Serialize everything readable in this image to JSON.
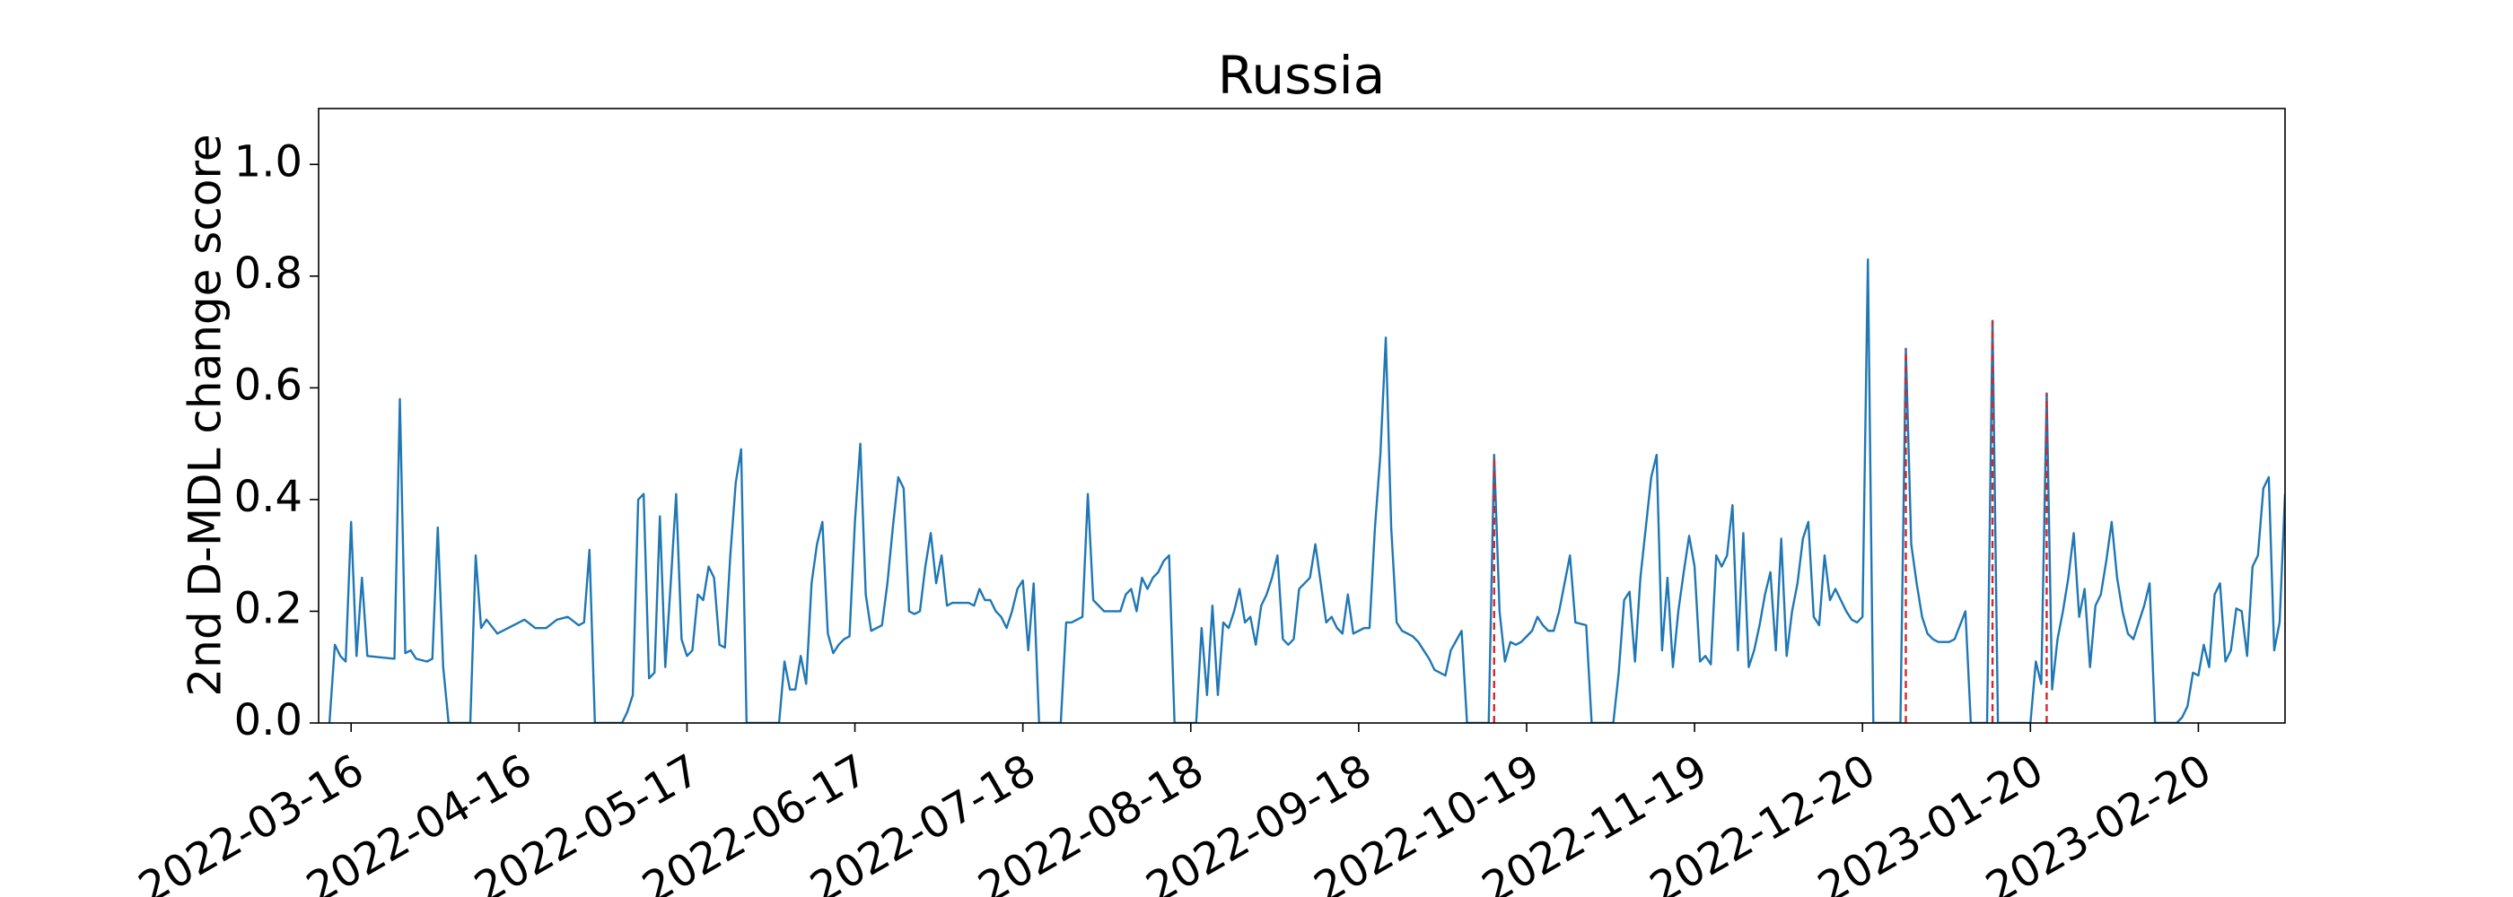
{
  "chart_data": {
    "type": "line",
    "title": "Russia",
    "ylabel": "2nd D-MDL change score",
    "color": "#1f77b4",
    "x": [
      "2022-03-12",
      "2022-03-13",
      "2022-03-14",
      "2022-03-15",
      "2022-03-16",
      "2022-03-17",
      "2022-03-18",
      "2022-03-19",
      "2022-03-24",
      "2022-03-25",
      "2022-03-26",
      "2022-03-27",
      "2022-03-28",
      "2022-03-30",
      "2022-03-31",
      "2022-04-01",
      "2022-04-02",
      "2022-04-03",
      "2022-04-07",
      "2022-04-08",
      "2022-04-09",
      "2022-04-10",
      "2022-04-12",
      "2022-04-17",
      "2022-04-19",
      "2022-04-21",
      "2022-04-23",
      "2022-04-25",
      "2022-04-27",
      "2022-04-28",
      "2022-04-29",
      "2022-04-30",
      "2022-05-05",
      "2022-05-06",
      "2022-05-07",
      "2022-05-08",
      "2022-05-09",
      "2022-05-10",
      "2022-05-11",
      "2022-05-12",
      "2022-05-13",
      "2022-05-14",
      "2022-05-15",
      "2022-05-16",
      "2022-05-17",
      "2022-05-18",
      "2022-05-19",
      "2022-05-20",
      "2022-05-21",
      "2022-05-22",
      "2022-05-23",
      "2022-05-24",
      "2022-05-25",
      "2022-05-26",
      "2022-05-27",
      "2022-05-28",
      "2022-06-03",
      "2022-06-04",
      "2022-06-05",
      "2022-06-06",
      "2022-06-07",
      "2022-06-08",
      "2022-06-09",
      "2022-06-10",
      "2022-06-11",
      "2022-06-12",
      "2022-06-13",
      "2022-06-14",
      "2022-06-15",
      "2022-06-16",
      "2022-06-17",
      "2022-06-18",
      "2022-06-19",
      "2022-06-20",
      "2022-06-21",
      "2022-06-22",
      "2022-06-23",
      "2022-06-24",
      "2022-06-25",
      "2022-06-26",
      "2022-06-27",
      "2022-06-28",
      "2022-06-29",
      "2022-06-30",
      "2022-07-01",
      "2022-07-02",
      "2022-07-03",
      "2022-07-04",
      "2022-07-05",
      "2022-07-08",
      "2022-07-09",
      "2022-07-10",
      "2022-07-11",
      "2022-07-12",
      "2022-07-13",
      "2022-07-14",
      "2022-07-15",
      "2022-07-16",
      "2022-07-17",
      "2022-07-18",
      "2022-07-19",
      "2022-07-20",
      "2022-07-21",
      "2022-07-25",
      "2022-07-26",
      "2022-07-27",
      "2022-07-28",
      "2022-07-29",
      "2022-07-30",
      "2022-07-31",
      "2022-08-01",
      "2022-08-02",
      "2022-08-05",
      "2022-08-06",
      "2022-08-07",
      "2022-08-08",
      "2022-08-09",
      "2022-08-10",
      "2022-08-11",
      "2022-08-12",
      "2022-08-13",
      "2022-08-14",
      "2022-08-15",
      "2022-08-19",
      "2022-08-20",
      "2022-08-21",
      "2022-08-22",
      "2022-08-23",
      "2022-08-24",
      "2022-08-25",
      "2022-08-26",
      "2022-08-27",
      "2022-08-28",
      "2022-08-29",
      "2022-08-30",
      "2022-08-31",
      "2022-09-01",
      "2022-09-02",
      "2022-09-03",
      "2022-09-04",
      "2022-09-05",
      "2022-09-06",
      "2022-09-07",
      "2022-09-08",
      "2022-09-09",
      "2022-09-10",
      "2022-09-11",
      "2022-09-12",
      "2022-09-13",
      "2022-09-14",
      "2022-09-15",
      "2022-09-16",
      "2022-09-17",
      "2022-09-18",
      "2022-09-19",
      "2022-09-20",
      "2022-09-21",
      "2022-09-22",
      "2022-09-23",
      "2022-09-24",
      "2022-09-25",
      "2022-09-26",
      "2022-09-27",
      "2022-09-28",
      "2022-09-29",
      "2022-09-30",
      "2022-10-01",
      "2022-10-02",
      "2022-10-04",
      "2022-10-05",
      "2022-10-07",
      "2022-10-08",
      "2022-10-12",
      "2022-10-13",
      "2022-10-14",
      "2022-10-15",
      "2022-10-16",
      "2022-10-17",
      "2022-10-18",
      "2022-10-19",
      "2022-10-20",
      "2022-10-21",
      "2022-10-22",
      "2022-10-23",
      "2022-10-24",
      "2022-10-25",
      "2022-10-27",
      "2022-10-28",
      "2022-10-30",
      "2022-10-31",
      "2022-11-04",
      "2022-11-05",
      "2022-11-06",
      "2022-11-07",
      "2022-11-08",
      "2022-11-09",
      "2022-11-10",
      "2022-11-11",
      "2022-11-12",
      "2022-11-13",
      "2022-11-14",
      "2022-11-15",
      "2022-11-16",
      "2022-11-17",
      "2022-11-18",
      "2022-11-19",
      "2022-11-20",
      "2022-11-21",
      "2022-11-22",
      "2022-11-23",
      "2022-11-24",
      "2022-11-25",
      "2022-11-26",
      "2022-11-27",
      "2022-11-28",
      "2022-11-29",
      "2022-11-30",
      "2022-12-01",
      "2022-12-02",
      "2022-12-03",
      "2022-12-04",
      "2022-12-05",
      "2022-12-06",
      "2022-12-07",
      "2022-12-08",
      "2022-12-09",
      "2022-12-10",
      "2022-12-11",
      "2022-12-12",
      "2022-12-13",
      "2022-12-14",
      "2022-12-15",
      "2022-12-16",
      "2022-12-17",
      "2022-12-18",
      "2022-12-19",
      "2022-12-20",
      "2022-12-21",
      "2022-12-22",
      "2022-12-27",
      "2022-12-28",
      "2022-12-29",
      "2022-12-30",
      "2022-12-31",
      "2023-01-01",
      "2023-01-02",
      "2023-01-03",
      "2023-01-05",
      "2023-01-06",
      "2023-01-07",
      "2023-01-08",
      "2023-01-09",
      "2023-01-12",
      "2023-01-13",
      "2023-01-14",
      "2023-01-20",
      "2023-01-21",
      "2023-01-22",
      "2023-01-23",
      "2023-01-24",
      "2023-01-25",
      "2023-01-26",
      "2023-01-27",
      "2023-01-28",
      "2023-01-29",
      "2023-01-30",
      "2023-01-31",
      "2023-02-01",
      "2023-02-02",
      "2023-02-03",
      "2023-02-04",
      "2023-02-05",
      "2023-02-06",
      "2023-02-07",
      "2023-02-08",
      "2023-02-09",
      "2023-02-10",
      "2023-02-11",
      "2023-02-12",
      "2023-02-16",
      "2023-02-17",
      "2023-02-18",
      "2023-02-19",
      "2023-02-20",
      "2023-02-21",
      "2023-02-22",
      "2023-02-23",
      "2023-02-24",
      "2023-02-25",
      "2023-02-26",
      "2023-02-27",
      "2023-02-28",
      "2023-03-01",
      "2023-03-02",
      "2023-03-03",
      "2023-03-04",
      "2023-03-05",
      "2023-03-06",
      "2023-03-07",
      "2023-03-08"
    ],
    "values": [
      0,
      0.14,
      0.12,
      0.11,
      0.36,
      0.12,
      0.26,
      0.12,
      0.115,
      0.58,
      0.125,
      0.13,
      0.115,
      0.11,
      0.115,
      0.35,
      0.1,
      0,
      0,
      0.3,
      0.17,
      0.185,
      0.16,
      0.185,
      0.17,
      0.17,
      0.185,
      0.19,
      0.175,
      0.18,
      0.31,
      0,
      0,
      0.02,
      0.05,
      0.4,
      0.41,
      0.08,
      0.09,
      0.37,
      0.1,
      0.25,
      0.41,
      0.15,
      0.12,
      0.13,
      0.23,
      0.22,
      0.28,
      0.26,
      0.14,
      0.135,
      0.3,
      0.43,
      0.49,
      0,
      0,
      0.11,
      0.06,
      0.06,
      0.12,
      0.07,
      0.25,
      0.32,
      0.36,
      0.16,
      0.125,
      0.14,
      0.15,
      0.155,
      0.36,
      0.5,
      0.23,
      0.165,
      0.17,
      0.175,
      0.25,
      0.35,
      0.44,
      0.42,
      0.2,
      0.195,
      0.2,
      0.28,
      0.34,
      0.25,
      0.3,
      0.21,
      0.215,
      0.215,
      0.21,
      0.24,
      0.22,
      0.22,
      0.2,
      0.19,
      0.17,
      0.2,
      0.24,
      0.255,
      0.13,
      0.25,
      0,
      0,
      0.18,
      0.18,
      0.185,
      0.19,
      0.41,
      0.22,
      0.21,
      0.2,
      0.2,
      0.23,
      0.24,
      0.2,
      0.26,
      0.24,
      0.26,
      0.27,
      0.29,
      0.3,
      0,
      0,
      0.17,
      0.05,
      0.21,
      0.05,
      0.18,
      0.17,
      0.2,
      0.24,
      0.18,
      0.19,
      0.14,
      0.21,
      0.23,
      0.26,
      0.3,
      0.15,
      0.14,
      0.15,
      0.24,
      0.25,
      0.26,
      0.32,
      0.25,
      0.18,
      0.19,
      0.17,
      0.16,
      0.23,
      0.16,
      0.165,
      0.17,
      0.17,
      0.35,
      0.48,
      0.69,
      0.35,
      0.18,
      0.165,
      0.16,
      0.155,
      0.145,
      0.13,
      0.115,
      0.095,
      0.085,
      0.13,
      0.165,
      0,
      0,
      0.48,
      0.2,
      0.11,
      0.145,
      0.14,
      0.145,
      0.155,
      0.165,
      0.19,
      0.175,
      0.165,
      0.165,
      0.2,
      0.3,
      0.18,
      0.175,
      0,
      0,
      0.09,
      0.22,
      0.235,
      0.11,
      0.26,
      0.35,
      0.44,
      0.48,
      0.13,
      0.26,
      0.1,
      0.2,
      0.27,
      0.335,
      0.28,
      0.11,
      0.12,
      0.105,
      0.3,
      0.28,
      0.3,
      0.39,
      0.13,
      0.34,
      0.1,
      0.13,
      0.175,
      0.23,
      0.27,
      0.13,
      0.33,
      0.12,
      0.2,
      0.25,
      0.33,
      0.36,
      0.19,
      0.175,
      0.3,
      0.22,
      0.24,
      0.22,
      0.2,
      0.185,
      0.18,
      0.19,
      0.83,
      0,
      0,
      0.67,
      0.32,
      0.25,
      0.19,
      0.16,
      0.15,
      0.145,
      0.145,
      0.15,
      0.175,
      0.2,
      0,
      0,
      0.72,
      0,
      0,
      0.11,
      0.07,
      0.59,
      0.06,
      0.15,
      0.2,
      0.26,
      0.34,
      0.19,
      0.24,
      0.1,
      0.21,
      0.23,
      0.29,
      0.36,
      0.26,
      0.2,
      0.16,
      0.15,
      0.18,
      0.21,
      0.25,
      0,
      0,
      0.01,
      0.03,
      0.09,
      0.085,
      0.14,
      0.1,
      0.23,
      0.25,
      0.11,
      0.13,
      0.205,
      0.2,
      0.12,
      0.28,
      0.3,
      0.42,
      0.44,
      0.13,
      0.18,
      0.41
    ],
    "change_points": [
      "2022-10-13",
      "2022-12-28",
      "2023-01-13",
      "2023-01-23"
    ],
    "change_point_color": "#d62728",
    "xlim": [
      "2022-03-10",
      "2023-03-08"
    ],
    "xticks": [
      "2022-03-16",
      "2022-04-16",
      "2022-05-17",
      "2022-06-17",
      "2022-07-18",
      "2022-08-18",
      "2022-09-18",
      "2022-10-19",
      "2022-11-19",
      "2022-12-20",
      "2023-01-20",
      "2023-02-20"
    ],
    "ylim": [
      0,
      1.1
    ],
    "yticks": [
      {
        "value": 0,
        "label": "0.0"
      },
      0.2,
      0.4,
      0.6,
      0.8,
      {
        "value": 1,
        "label": "1.0"
      }
    ],
    "grid": false
  }
}
